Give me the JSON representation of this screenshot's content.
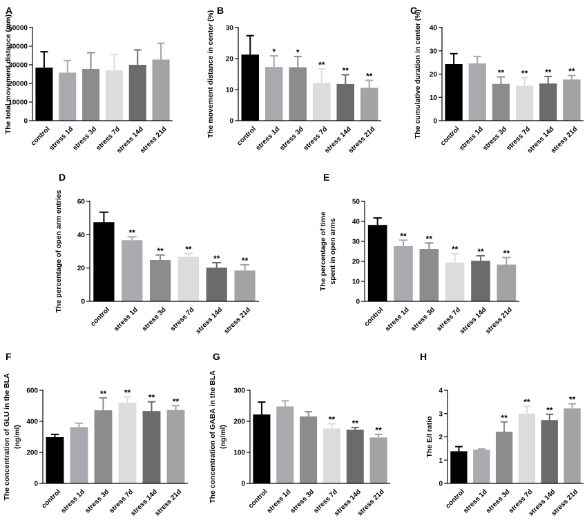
{
  "figure": {
    "bar_colors": [
      "#000000",
      "#a9a9af",
      "#8c8c8c",
      "#dcdcdc",
      "#6b6b6b",
      "#a3a3a3"
    ]
  },
  "chart_data": [
    {
      "panel": "A",
      "type": "bar",
      "categories": [
        "control",
        "stress 1d",
        "stress 3d",
        "stress 7d",
        "stress 14d",
        "stress 21d"
      ],
      "values": [
        28500,
        25800,
        27800,
        27000,
        30000,
        32800
      ],
      "errors": [
        8500,
        6500,
        8700,
        8500,
        8000,
        8800
      ],
      "significance": [
        "",
        "",
        "",
        "",
        "",
        ""
      ],
      "ylabel": [
        "The total movement distance (mm)"
      ],
      "ylim": [
        0,
        50000
      ],
      "yticks": [
        0,
        10000,
        20000,
        30000,
        40000,
        50000
      ]
    },
    {
      "panel": "B",
      "type": "bar",
      "categories": [
        "control",
        "stress 1d",
        "stress 3d",
        "stress 7d",
        "stress 14d",
        "stress 21d"
      ],
      "values": [
        21.3,
        17.3,
        17.2,
        12.2,
        11.8,
        10.6
      ],
      "errors": [
        6.1,
        3.6,
        3.5,
        4.5,
        3.0,
        2.4
      ],
      "significance": [
        "",
        "*",
        "*",
        "**",
        "**",
        "**"
      ],
      "ylabel": [
        "The movement distance in center (%)"
      ],
      "ylim": [
        0,
        30
      ],
      "yticks": [
        0,
        10,
        20,
        30
      ]
    },
    {
      "panel": "C",
      "type": "bar",
      "categories": [
        "control",
        "stress 1d",
        "stress 3d",
        "stress 7d",
        "stress 14d",
        "stress 21d"
      ],
      "values": [
        24.3,
        24.6,
        15.8,
        15.0,
        16.0,
        17.7
      ],
      "errors": [
        4.5,
        3.0,
        3.0,
        3.5,
        3.0,
        1.7
      ],
      "significance": [
        "",
        "",
        "**",
        "**",
        "**",
        "**"
      ],
      "ylabel": [
        "The cumulative duration in center (%)"
      ],
      "ylim": [
        0,
        40
      ],
      "yticks": [
        0,
        10,
        20,
        30,
        40
      ]
    },
    {
      "panel": "D",
      "type": "bar",
      "categories": [
        "control",
        "stress 1d",
        "stress 3d",
        "stress 7d",
        "stress 14d",
        "stress 21d"
      ],
      "values": [
        47.5,
        36.7,
        24.8,
        26.7,
        20.2,
        18.5
      ],
      "errors": [
        6.0,
        2.0,
        3.0,
        2.0,
        3.0,
        3.5
      ],
      "significance": [
        "",
        "**",
        "**",
        "**",
        "**",
        "**"
      ],
      "ylabel": [
        "The percentage of open arm entries"
      ],
      "ylim": [
        0,
        60
      ],
      "yticks": [
        0,
        20,
        40,
        60
      ]
    },
    {
      "panel": "E",
      "type": "bar",
      "categories": [
        "control",
        "stress 1d",
        "stress 3d",
        "stress 7d",
        "stress 14d",
        "stress 21d"
      ],
      "values": [
        38.2,
        27.6,
        26.2,
        19.4,
        20.3,
        18.4
      ],
      "errors": [
        3.5,
        3.0,
        3.0,
        4.5,
        2.5,
        3.5
      ],
      "significance": [
        "",
        "**",
        "**",
        "**",
        "**",
        "**"
      ],
      "ylabel": [
        "The  percentage of time",
        "spent in open arms"
      ],
      "ylim": [
        0,
        50
      ],
      "yticks": [
        0,
        10,
        20,
        30,
        40,
        50
      ]
    },
    {
      "panel": "F",
      "type": "bar",
      "categories": [
        "control",
        "stress 1d",
        "stress 3d",
        "stress 7d",
        "stress 14d",
        "stress 21d"
      ],
      "values": [
        298,
        363,
        471,
        520,
        466,
        473
      ],
      "errors": [
        18,
        25,
        80,
        37,
        60,
        28
      ],
      "significance": [
        "",
        "",
        "**",
        "**",
        "**",
        "**"
      ],
      "ylabel": [
        "The concentration of GLU in the BLA",
        "(ng/ml)"
      ],
      "ylim": [
        0,
        600
      ],
      "yticks": [
        0,
        200,
        400,
        600
      ]
    },
    {
      "panel": "G",
      "type": "bar",
      "categories": [
        "control",
        "stress 1d",
        "stress 3d",
        "stress 7d",
        "stress 14d",
        "stress 21d"
      ],
      "values": [
        222,
        248,
        216,
        177,
        173,
        148
      ],
      "errors": [
        40,
        18,
        15,
        15,
        7,
        10
      ],
      "significance": [
        "",
        "",
        "",
        "**",
        "**",
        "**"
      ],
      "ylabel": [
        "The concentration of GABA in the BLA",
        "(ng/ml)"
      ],
      "ylim": [
        0,
        300
      ],
      "yticks": [
        0,
        100,
        200,
        300
      ]
    },
    {
      "panel": "H",
      "type": "bar",
      "categories": [
        "control",
        "stress 1d",
        "stress 3d",
        "stress 7d",
        "stress 14d",
        "stress 21d"
      ],
      "values": [
        1.38,
        1.45,
        2.22,
        3.0,
        2.72,
        3.22
      ],
      "errors": [
        0.2,
        0.03,
        0.42,
        0.32,
        0.25,
        0.2
      ],
      "significance": [
        "",
        "",
        "**",
        "**",
        "**",
        "**"
      ],
      "ylabel": [
        "The E/I ratio"
      ],
      "ylim": [
        0,
        4
      ],
      "yticks": [
        0,
        1,
        2,
        3,
        4
      ]
    }
  ]
}
